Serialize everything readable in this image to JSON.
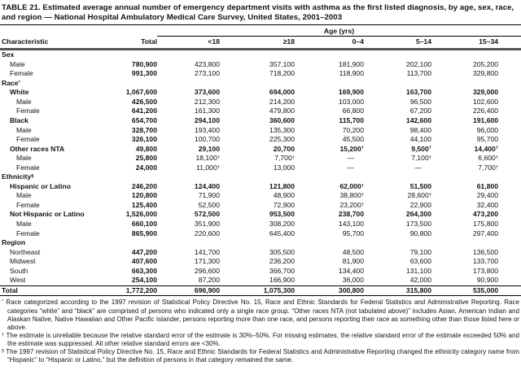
{
  "title": "TABLE 21. Estimated average annual number of emergency department visits with asthma as the first listed diagnosis, by age, sex, race, and region — National Hospital Ambulatory Medical Care Survey, United States, 2001–2003",
  "table": {
    "age_group_label": "Age (yrs)",
    "columns": [
      "Characteristic",
      "Total",
      "<18",
      "≥18",
      "0–4",
      "5–14",
      "15–34"
    ],
    "rows": [
      {
        "label": "Sex",
        "type": "section",
        "indent": 0,
        "bold": false,
        "values": null
      },
      {
        "label": "Male",
        "type": "data",
        "indent": 1,
        "bold": false,
        "values": [
          "780,900",
          "423,800",
          "357,100",
          "181,900",
          "202,100",
          "205,200"
        ]
      },
      {
        "label": "Female",
        "type": "data",
        "indent": 1,
        "bold": false,
        "values": [
          "991,300",
          "273,100",
          "718,200",
          "118,900",
          "113,700",
          "329,800"
        ]
      },
      {
        "label": "Race*",
        "type": "section",
        "indent": 0,
        "bold": false,
        "values": null
      },
      {
        "label": "White",
        "type": "data",
        "indent": 1,
        "bold": true,
        "values": [
          "1,067,600",
          "373,600",
          "694,000",
          "169,900",
          "163,700",
          "329,000"
        ]
      },
      {
        "label": "Male",
        "type": "data",
        "indent": 2,
        "bold": false,
        "values": [
          "426,500",
          "212,300",
          "214,200",
          "103,000",
          "96,500",
          "102,600"
        ]
      },
      {
        "label": "Female",
        "type": "data",
        "indent": 2,
        "bold": false,
        "values": [
          "641,200",
          "161,300",
          "479,800",
          "66,800",
          "67,200",
          "226,400"
        ]
      },
      {
        "label": "Black",
        "type": "data",
        "indent": 1,
        "bold": true,
        "values": [
          "654,700",
          "294,100",
          "360,600",
          "115,700",
          "142,600",
          "191,600"
        ]
      },
      {
        "label": "Male",
        "type": "data",
        "indent": 2,
        "bold": false,
        "values": [
          "328,700",
          "193,400",
          "135,300",
          "70,200",
          "98,400",
          "96,000"
        ]
      },
      {
        "label": "Female",
        "type": "data",
        "indent": 2,
        "bold": false,
        "values": [
          "326,100",
          "100,700",
          "225,300",
          "45,500",
          "44,100",
          "95,700"
        ]
      },
      {
        "label": "Other races NTA",
        "type": "data",
        "indent": 1,
        "bold": true,
        "values": [
          "49,800",
          "29,100",
          "20,700",
          "15,200†",
          "9,500†",
          "14,400†"
        ]
      },
      {
        "label": "Male",
        "type": "data",
        "indent": 2,
        "bold": false,
        "values": [
          "25,800",
          "18,100†",
          "7,700†",
          "—",
          "7,100†",
          "6,600†"
        ]
      },
      {
        "label": "Female",
        "type": "data",
        "indent": 2,
        "bold": false,
        "values": [
          "24,000",
          "11,000†",
          "13,000",
          "—",
          "—",
          "7,700†"
        ]
      },
      {
        "label": "Ethnicity§",
        "type": "section",
        "indent": 0,
        "bold": false,
        "values": null
      },
      {
        "label": "Hispanic or Latino",
        "type": "data",
        "indent": 1,
        "bold": true,
        "values": [
          "246,200",
          "124,400",
          "121,800",
          "62,000†",
          "51,500",
          "61,800"
        ]
      },
      {
        "label": "Male",
        "type": "data",
        "indent": 2,
        "bold": false,
        "values": [
          "120,800",
          "71,900",
          "48,900",
          "38,800†",
          "28,600†",
          "29,400"
        ]
      },
      {
        "label": "Female",
        "type": "data",
        "indent": 2,
        "bold": false,
        "values": [
          "125,400",
          "52,500",
          "72,900",
          "23,200†",
          "22,900",
          "32,400"
        ]
      },
      {
        "label": "Not Hispanic or Latino",
        "type": "data",
        "indent": 1,
        "bold": true,
        "values": [
          "1,526,000",
          "572,500",
          "953,500",
          "238,700",
          "264,300",
          "473,200"
        ]
      },
      {
        "label": "Male",
        "type": "data",
        "indent": 2,
        "bold": false,
        "values": [
          "660,100",
          "351,900",
          "308,200",
          "143,100",
          "173,500",
          "175,800"
        ]
      },
      {
        "label": "Female",
        "type": "data",
        "indent": 2,
        "bold": false,
        "values": [
          "865,900",
          "220,600",
          "645,400",
          "95,700",
          "90,800",
          "297,400"
        ]
      },
      {
        "label": "Region",
        "type": "section",
        "indent": 0,
        "bold": false,
        "values": null
      },
      {
        "label": "Northeast",
        "type": "data",
        "indent": 1,
        "bold": false,
        "values": [
          "447,200",
          "141,700",
          "305,500",
          "48,500",
          "79,100",
          "136,500"
        ]
      },
      {
        "label": "Midwest",
        "type": "data",
        "indent": 1,
        "bold": false,
        "values": [
          "407,600",
          "171,300",
          "236,200",
          "81,900",
          "63,600",
          "133,700"
        ]
      },
      {
        "label": "South",
        "type": "data",
        "indent": 1,
        "bold": false,
        "values": [
          "663,300",
          "296,600",
          "366,700",
          "134,400",
          "131,100",
          "173,800"
        ]
      },
      {
        "label": "West",
        "type": "data",
        "indent": 1,
        "bold": false,
        "values": [
          "254,100",
          "87,200",
          "166,900",
          "36,000",
          "42,000",
          "90,900"
        ]
      },
      {
        "label": "Total",
        "type": "total",
        "indent": 0,
        "bold": true,
        "values": [
          "1,772,200",
          "696,900",
          "1,075,300",
          "300,800",
          "315,800",
          "535,000"
        ]
      }
    ]
  },
  "footnotes": [
    {
      "marker": "*",
      "text": "Race categorized according to the 1997 revision of Statistical Policy Directive No. 15, Race and Ethnic Standards for Federal Statistics and Administrative Reporting. Race categories “white” and “black” are comprised of persons who indicated only a single race group. “Other races NTA (not tabulated above)” includes Asian, American Indian and Alaskan Native, Native Hawaiian and Other Pacific Islander, persons reporting more than one race, and persons reporting their race as something other than those listed here or above."
    },
    {
      "marker": "†",
      "text": "The estimate is unreliable because the relative standard error of the estimate is 30%–50%. For missing estimates, the relative standard error of the estimate exceeded 50% and the estimate was suppressed. All other relative standard errors are <30%."
    },
    {
      "marker": "§",
      "text": "The 1997 revision of Statistical Policy Directive No. 15, Race and Ethnic Standards for Federal Statistics and Administrative Reporting changed the ethnicity category name from “Hispanic” to “Hispanic or Latino,” but the definition of persons in that category remained the same."
    }
  ]
}
